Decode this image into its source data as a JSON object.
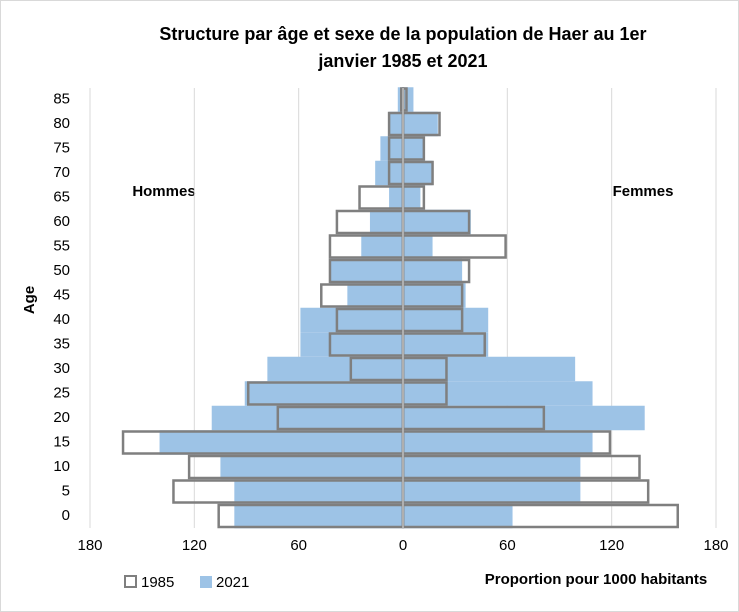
{
  "chart_data": {
    "type": "pyramid",
    "title": [
      "Structure par âge et sexe de la population de Haer au 1er",
      "janvier 1985 et 2021"
    ],
    "annotations": [
      "Hommes",
      "Femmes"
    ],
    "y_label": "Age",
    "x_label": "Proportion pour 1000 habitants",
    "categories": [
      "0",
      "5",
      "10",
      "15",
      "20",
      "25",
      "30",
      "35",
      "40",
      "45",
      "50",
      "55",
      "60",
      "65",
      "70",
      "75",
      "80",
      "85"
    ],
    "series": [
      {
        "name": "1985",
        "color": "#7f7f7f",
        "style": "outline",
        "hommes": [
          106,
          132,
          123,
          161,
          72,
          89,
          30,
          42,
          38,
          47,
          42,
          42,
          38,
          25,
          8,
          8,
          8,
          1
        ],
        "femmes": [
          158,
          141,
          136,
          119,
          81,
          25,
          25,
          47,
          34,
          34,
          38,
          59,
          38,
          12,
          17,
          12,
          21,
          2
        ]
      },
      {
        "name": "2021",
        "color": "#9dc3e6",
        "style": "fill",
        "hommes": [
          97,
          97,
          105,
          140,
          110,
          91,
          78,
          59,
          59,
          32,
          42,
          24,
          19,
          8,
          16,
          13,
          8,
          3
        ],
        "femmes": [
          63,
          102,
          102,
          109,
          139,
          109,
          99,
          49,
          49,
          36,
          34,
          17,
          39,
          10,
          17,
          12,
          20,
          6
        ]
      }
    ],
    "xlim": [
      -180,
      180
    ],
    "xticks": [
      {
        "value": -180,
        "label": "180"
      },
      {
        "value": -120,
        "label": "120"
      },
      {
        "value": -60,
        "label": "60"
      },
      0,
      60,
      120,
      180
    ],
    "grid": true,
    "legend": "bottom-left"
  }
}
